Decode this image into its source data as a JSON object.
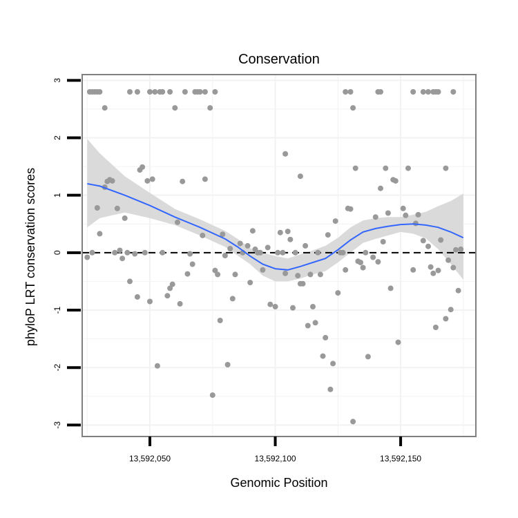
{
  "chart_data": {
    "type": "scatter",
    "title": "Conservation",
    "xlabel": "Genomic Position",
    "ylabel": "phyloP LRT conservation scores",
    "xlim": [
      13592023,
      13592180
    ],
    "ylim": [
      -3.2,
      3.1
    ],
    "x_ticks": [
      {
        "value": 13592050,
        "label": "13,592,050"
      },
      {
        "value": 13592100,
        "label": "13,592,100"
      },
      {
        "value": 13592150,
        "label": "13,592,150"
      }
    ],
    "y_ticks": [
      {
        "value": 3,
        "label": "3"
      },
      {
        "value": 2,
        "label": "2"
      },
      {
        "value": 1,
        "label": "1"
      },
      {
        "value": 0,
        "label": "0"
      },
      {
        "value": -1,
        "label": "-1"
      },
      {
        "value": -2,
        "label": "-2"
      },
      {
        "value": -3,
        "label": "-3"
      }
    ],
    "reference_line": {
      "y": 0,
      "style": "dashed"
    },
    "colors": {
      "points": "#999999",
      "smooth": "#3366ff",
      "ribbon": "#d6d6d6",
      "grid": "#f2f2f2",
      "border": "#7f7f7f"
    },
    "points": [
      [
        13592026,
        2.8
      ],
      [
        13592027,
        2.8
      ],
      [
        13592028,
        2.8
      ],
      [
        13592029,
        2.8
      ],
      [
        13592030,
        2.8
      ],
      [
        13592032,
        2.52
      ],
      [
        13592042,
        2.8
      ],
      [
        13592045,
        2.8
      ],
      [
        13592050,
        2.8
      ],
      [
        13592052,
        2.8
      ],
      [
        13592054,
        2.8
      ],
      [
        13592055,
        2.8
      ],
      [
        13592058,
        2.8
      ],
      [
        13592060,
        2.52
      ],
      [
        13592064,
        2.8
      ],
      [
        13592068,
        2.8
      ],
      [
        13592069,
        2.8
      ],
      [
        13592070,
        2.8
      ],
      [
        13592072,
        2.8
      ],
      [
        13592074,
        2.52
      ],
      [
        13592076,
        2.8
      ],
      [
        13592104,
        1.72
      ],
      [
        13592110,
        1.33
      ],
      [
        13592128,
        2.8
      ],
      [
        13592130,
        2.8
      ],
      [
        13592131,
        2.52
      ],
      [
        13592141,
        2.8
      ],
      [
        13592142,
        2.8
      ],
      [
        13592155,
        2.8
      ],
      [
        13592159,
        2.8
      ],
      [
        13592161,
        2.8
      ],
      [
        13592163,
        2.8
      ],
      [
        13592164,
        2.8
      ],
      [
        13592165,
        2.8
      ],
      [
        13592171,
        2.8
      ],
      [
        13592168,
        1.47
      ],
      [
        13592025,
        -0.08
      ],
      [
        13592027,
        0.0
      ],
      [
        13592029,
        0.78
      ],
      [
        13592030,
        0.33
      ],
      [
        13592032,
        1.14
      ],
      [
        13592033,
        1.24
      ],
      [
        13592034,
        1.27
      ],
      [
        13592035,
        1.25
      ],
      [
        13592036,
        0.0
      ],
      [
        13592037,
        0.77
      ],
      [
        13592038,
        0.04
      ],
      [
        13592039,
        -0.1
      ],
      [
        13592040,
        0.6
      ],
      [
        13592041,
        0.0
      ],
      [
        13592042,
        -0.5
      ],
      [
        13592044,
        -0.02
      ],
      [
        13592045,
        -0.77
      ],
      [
        13592046,
        1.44
      ],
      [
        13592047,
        1.49
      ],
      [
        13592048,
        0.0
      ],
      [
        13592049,
        1.25
      ],
      [
        13592050,
        -0.85
      ],
      [
        13592051,
        1.28
      ],
      [
        13592053,
        -1.97
      ],
      [
        13592055,
        0.0
      ],
      [
        13592057,
        -0.75
      ],
      [
        13592058,
        -0.62
      ],
      [
        13592059,
        -0.55
      ],
      [
        13592061,
        0.53
      ],
      [
        13592063,
        1.24
      ],
      [
        13592062,
        -0.89
      ],
      [
        13592065,
        -0.37
      ],
      [
        13592066,
        -0.02
      ],
      [
        13592067,
        -0.2
      ],
      [
        13592071,
        0.3
      ],
      [
        13592072,
        1.28
      ],
      [
        13592075,
        -2.48
      ],
      [
        13592076,
        -0.31
      ],
      [
        13592077,
        -0.38
      ],
      [
        13592078,
        -1.18
      ],
      [
        13592079,
        0.32
      ],
      [
        13592080,
        -0.05
      ],
      [
        13592081,
        -1.95
      ],
      [
        13592082,
        0.07
      ],
      [
        13592083,
        -0.8
      ],
      [
        13592084,
        -0.38
      ],
      [
        13592086,
        0.16
      ],
      [
        13592087,
        0.0
      ],
      [
        13592089,
        0.12
      ],
      [
        13592090,
        -0.52
      ],
      [
        13592091,
        0.38
      ],
      [
        13592092,
        0.06
      ],
      [
        13592093,
        0.0
      ],
      [
        13592094,
        0.0
      ],
      [
        13592095,
        -0.3
      ],
      [
        13592097,
        0.09
      ],
      [
        13592098,
        -0.9
      ],
      [
        13592100,
        -0.94
      ],
      [
        13592101,
        0.0
      ],
      [
        13592102,
        0.35
      ],
      [
        13592103,
        0.0
      ],
      [
        13592104,
        -0.36
      ],
      [
        13592105,
        0.37
      ],
      [
        13592106,
        0.23
      ],
      [
        13592107,
        -0.96
      ],
      [
        13592108,
        0.0
      ],
      [
        13592109,
        -0.4
      ],
      [
        13592110,
        -0.54
      ],
      [
        13592111,
        -0.54
      ],
      [
        13592112,
        0.12
      ],
      [
        13592113,
        -1.27
      ],
      [
        13592114,
        -0.38
      ],
      [
        13592115,
        -0.94
      ],
      [
        13592116,
        -1.22
      ],
      [
        13592117,
        0.0
      ],
      [
        13592118,
        -0.38
      ],
      [
        13592119,
        -1.8
      ],
      [
        13592120,
        -1.48
      ],
      [
        13592121,
        0.31
      ],
      [
        13592122,
        -2.38
      ],
      [
        13592123,
        -1.93
      ],
      [
        13592124,
        0.55
      ],
      [
        13592125,
        -0.7
      ],
      [
        13592126,
        0.0
      ],
      [
        13592127,
        0.0
      ],
      [
        13592128,
        -0.3
      ],
      [
        13592129,
        0.77
      ],
      [
        13592130,
        0.76
      ],
      [
        13592131,
        -2.94
      ],
      [
        13592132,
        1.47
      ],
      [
        13592133,
        -0.15
      ],
      [
        13592134,
        -0.17
      ],
      [
        13592135,
        -0.26
      ],
      [
        13592136,
        0.0
      ],
      [
        13592137,
        -1.81
      ],
      [
        13592139,
        -0.08
      ],
      [
        13592140,
        0.62
      ],
      [
        13592141,
        -0.16
      ],
      [
        13592142,
        1.12
      ],
      [
        13592143,
        0.19
      ],
      [
        13592144,
        1.47
      ],
      [
        13592145,
        0.69
      ],
      [
        13592146,
        -0.62
      ],
      [
        13592147,
        1.27
      ],
      [
        13592148,
        1.25
      ],
      [
        13592149,
        -1.56
      ],
      [
        13592151,
        0.77
      ],
      [
        13592152,
        0.65
      ],
      [
        13592153,
        1.47
      ],
      [
        13592155,
        -0.3
      ],
      [
        13592156,
        0.51
      ],
      [
        13592157,
        0.66
      ],
      [
        13592159,
        0.21
      ],
      [
        13592161,
        0.11
      ],
      [
        13592162,
        -0.25
      ],
      [
        13592163,
        -0.36
      ],
      [
        13592164,
        -1.3
      ],
      [
        13592165,
        -0.31
      ],
      [
        13592166,
        0.22
      ],
      [
        13592168,
        -1.15
      ],
      [
        13592169,
        -0.13
      ],
      [
        13592170,
        -0.99
      ],
      [
        13592171,
        -0.26
      ],
      [
        13592172,
        0.05
      ],
      [
        13592173,
        -0.66
      ],
      [
        13592174,
        0.06
      ]
    ],
    "smooth": {
      "x": [
        13592025,
        13592030,
        13592040,
        13592050,
        13592060,
        13592070,
        13592080,
        13592085,
        13592090,
        13592095,
        13592100,
        13592105,
        13592110,
        13592115,
        13592120,
        13592125,
        13592130,
        13592135,
        13592140,
        13592145,
        13592150,
        13592155,
        13592160,
        13592165,
        13592170,
        13592175
      ],
      "y": [
        1.2,
        1.16,
        1.0,
        0.82,
        0.62,
        0.44,
        0.24,
        0.1,
        -0.06,
        -0.2,
        -0.28,
        -0.3,
        -0.24,
        -0.17,
        -0.1,
        0.05,
        0.22,
        0.36,
        0.42,
        0.46,
        0.49,
        0.5,
        0.48,
        0.44,
        0.36,
        0.26
      ],
      "lower": [
        0.44,
        0.6,
        0.7,
        0.6,
        0.48,
        0.3,
        0.1,
        -0.05,
        -0.2,
        -0.4,
        -0.5,
        -0.5,
        -0.45,
        -0.38,
        -0.32,
        -0.17,
        0.0,
        0.17,
        0.24,
        0.3,
        0.36,
        0.33,
        0.25,
        0.06,
        -0.2,
        -0.47
      ],
      "upper": [
        1.98,
        1.73,
        1.33,
        1.04,
        0.76,
        0.58,
        0.38,
        0.24,
        0.08,
        0.0,
        -0.06,
        -0.1,
        -0.03,
        0.04,
        0.12,
        0.26,
        0.44,
        0.56,
        0.6,
        0.62,
        0.62,
        0.66,
        0.71,
        0.81,
        0.9,
        1.03
      ]
    }
  }
}
